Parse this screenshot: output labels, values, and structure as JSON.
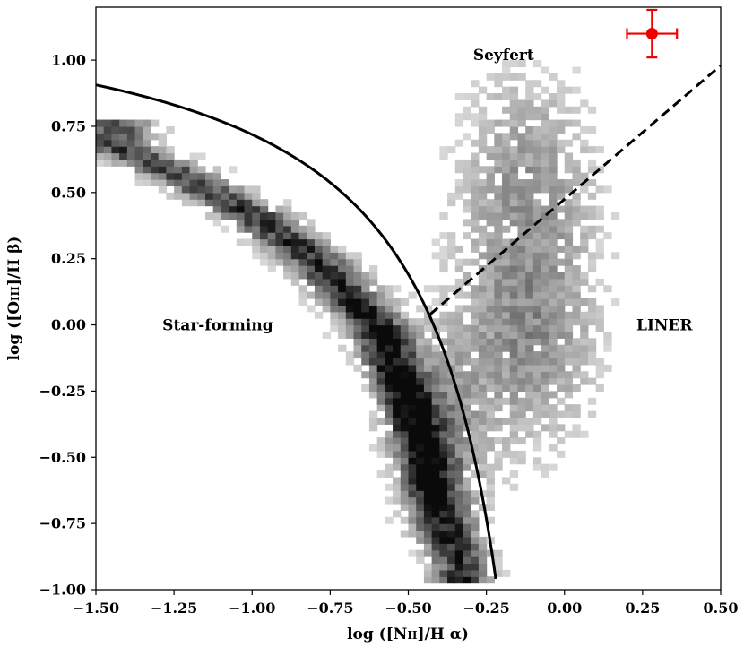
{
  "chart_data": {
    "type": "heatmap",
    "title": "",
    "xlabel": {
      "prefix": "log ([N",
      "smallcaps": "II",
      "suffix": "]/H α)"
    },
    "ylabel": {
      "prefix": "log ([O",
      "smallcaps": "III",
      "suffix": "]/H β)"
    },
    "xlim": [
      -1.5,
      0.5
    ],
    "ylim": [
      -1.0,
      1.2
    ],
    "xticks": [
      -1.5,
      -1.25,
      -1.0,
      -0.75,
      -0.5,
      -0.25,
      0.0,
      0.25,
      0.5
    ],
    "xtick_labels": [
      "−1.50",
      "−1.25",
      "−1.00",
      "−0.75",
      "−0.50",
      "−0.25",
      "0.00",
      "0.25",
      "0.50"
    ],
    "yticks": [
      -1.0,
      -0.75,
      -0.5,
      -0.25,
      0.0,
      0.25,
      0.5,
      0.75,
      1.0
    ],
    "ytick_labels": [
      "−1.00",
      "−0.75",
      "−0.50",
      "−0.25",
      "0.00",
      "0.25",
      "0.50",
      "0.75",
      "1.00"
    ],
    "grid": false,
    "density_colormap": "greys",
    "density_components": [
      {
        "region": "star-forming sequence",
        "path_x": [
          -1.45,
          -1.25,
          -1.0,
          -0.8,
          -0.6,
          -0.5,
          -0.45,
          -0.4,
          -0.33
        ],
        "path_y": [
          0.68,
          0.58,
          0.42,
          0.25,
          0.0,
          -0.28,
          -0.5,
          -0.72,
          -0.9
        ]
      },
      {
        "region": "Seyfert",
        "center": [
          -0.1,
          0.6
        ],
        "peak": 0.4
      },
      {
        "region": "LINER",
        "center": [
          -0.05,
          -0.05
        ],
        "peak": 0.5
      }
    ],
    "lines": [
      {
        "name": "Kauffmann et al. (2003) demarcation",
        "style": "solid",
        "color": "#000000",
        "equation": "0.61/(x-0.05)+1.3",
        "x_range": [
          -1.5,
          -0.22
        ]
      },
      {
        "name": "Seyfert–LINER division",
        "style": "dashed",
        "color": "#000000",
        "x": [
          -0.43,
          0.5
        ],
        "y": [
          0.04,
          0.98
        ]
      }
    ],
    "points": [
      {
        "x": 0.28,
        "y": 1.1,
        "xerr": 0.08,
        "yerr": 0.09,
        "color": "#ee0000"
      }
    ],
    "annotations": [
      {
        "text": "Seyfert",
        "x": -0.195,
        "y": 1.02
      },
      {
        "text": "Star-forming",
        "x": -1.11,
        "y": 0.0
      },
      {
        "text": "LINER",
        "x": 0.32,
        "y": 0.0
      }
    ]
  }
}
